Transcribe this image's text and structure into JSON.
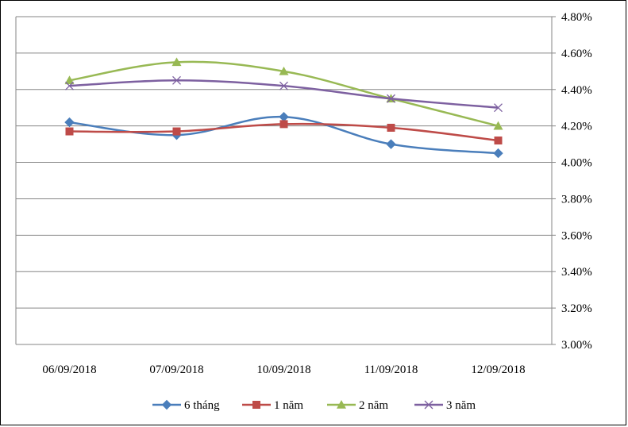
{
  "chart_data": {
    "type": "line",
    "title": "",
    "xlabel": "",
    "ylabel": "",
    "categories": [
      "06/09/2018",
      "07/09/2018",
      "10/09/2018",
      "11/09/2018",
      "12/09/2018"
    ],
    "ylim": [
      3.0,
      4.8
    ],
    "ystep": 0.2,
    "y_tick_labels": [
      "3.00%",
      "3.20%",
      "3.40%",
      "3.60%",
      "3.80%",
      "4.00%",
      "4.20%",
      "4.40%",
      "4.60%",
      "4.80%"
    ],
    "y_axis_side": "right",
    "grid": true,
    "legend_position": "bottom",
    "series": [
      {
        "name": "6 tháng",
        "values": [
          4.22,
          4.15,
          4.25,
          4.1,
          4.05
        ],
        "color": "#4a7ebb",
        "marker": "diamond"
      },
      {
        "name": "1 năm",
        "values": [
          4.17,
          4.17,
          4.21,
          4.19,
          4.12
        ],
        "color": "#be4b48",
        "marker": "square"
      },
      {
        "name": "2 năm",
        "values": [
          4.45,
          4.55,
          4.5,
          4.35,
          4.2
        ],
        "color": "#98b954",
        "marker": "triangle"
      },
      {
        "name": "3 năm",
        "values": [
          4.42,
          4.45,
          4.42,
          4.35,
          4.3
        ],
        "color": "#7d60a0",
        "marker": "x"
      }
    ]
  }
}
